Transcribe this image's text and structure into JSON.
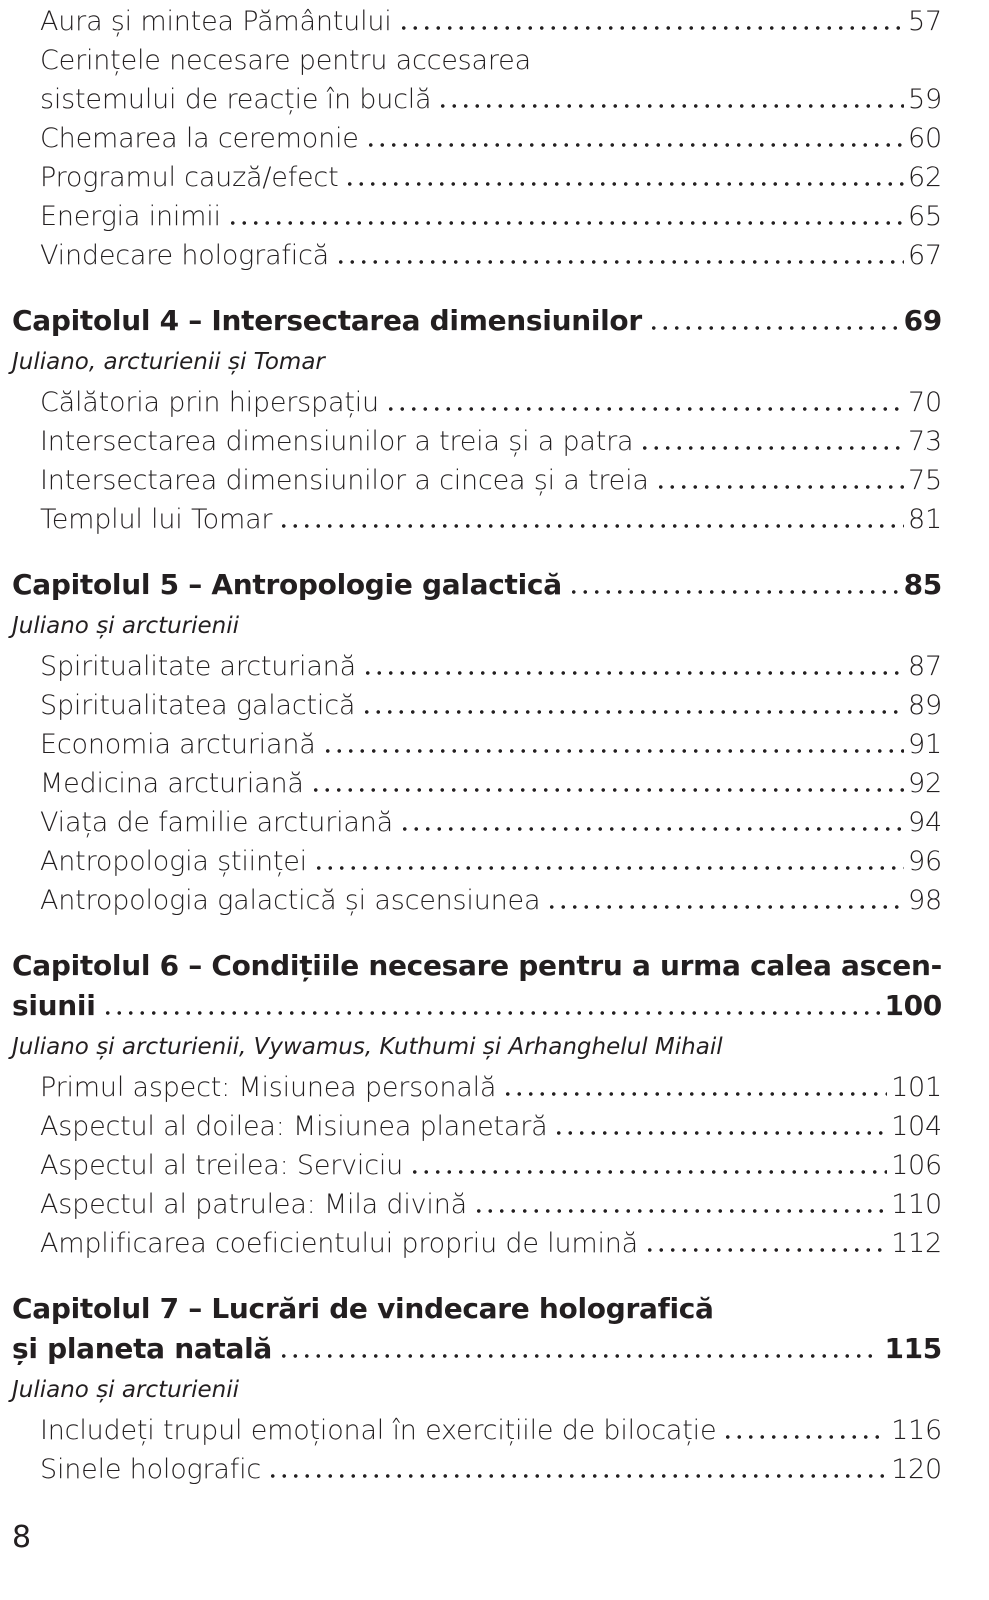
{
  "top_entries": [
    {
      "title": "Aura și mintea Pământului",
      "page": 57
    },
    {
      "lines": [
        "Cerințele necesare pentru accesarea",
        "sistemului de reacție în buclă"
      ],
      "page": 59
    },
    {
      "title": "Chemarea la ceremonie",
      "page": 60
    },
    {
      "title": "Programul cauză/efect",
      "page": 62
    },
    {
      "title": "Energia inimii",
      "page": 65
    },
    {
      "title": "Vindecare holografică",
      "page": 67
    }
  ],
  "chapters": [
    {
      "title": "Capitolul 4 – Intersectarea dimensiunilor",
      "page": 69,
      "subtitle": "Juliano, arcturienii și Tomar",
      "entries": [
        {
          "title": "Călătoria prin hiperspațiu",
          "page": 70
        },
        {
          "title": "Intersectarea dimensiunilor a treia și a patra",
          "page": 73
        },
        {
          "title": "Intersectarea dimensiunilor a cincea și a treia",
          "page": 75
        },
        {
          "title": "Templul lui Tomar",
          "page": 81
        }
      ]
    },
    {
      "title": "Capitolul 5 – Antropologie galactică",
      "page": 85,
      "subtitle": "Juliano și arcturienii",
      "entries": [
        {
          "title": "Spiritualitate arcturiană",
          "page": 87
        },
        {
          "title": "Spiritualitatea galactică",
          "page": 89
        },
        {
          "title": "Economia arcturiană",
          "page": 91
        },
        {
          "title": "Medicina arcturiană",
          "page": 92
        },
        {
          "title": "Viața de familie arcturiană",
          "page": 94
        },
        {
          "title": "Antropologia științei",
          "page": 96
        },
        {
          "title": "Antropologia galactică și ascensiunea",
          "page": 98
        }
      ]
    },
    {
      "lines": [
        "Capitolul 6 – Condițiile necesare pentru a urma calea ascen-",
        "siunii"
      ],
      "page": 100,
      "subtitle": "Juliano și arcturienii, Vywamus, Kuthumi și Arhanghelul Mihail",
      "entries": [
        {
          "title": "Primul aspect: Misiunea personală",
          "page": 101
        },
        {
          "title": "Aspectul al doilea: Misiunea planetară",
          "page": 104
        },
        {
          "title": "Aspectul al treilea: Serviciu",
          "page": 106
        },
        {
          "title": "Aspectul al patrulea: Mila divină",
          "page": 110
        },
        {
          "title": "Amplificarea coeficientului propriu de lumină",
          "page": 112
        }
      ]
    },
    {
      "lines": [
        "Capitolul 7 – Lucrări de vindecare holografică",
        "și planeta natală"
      ],
      "page": 115,
      "subtitle": "Juliano și arcturienii",
      "entries": [
        {
          "title": "Includeți trupul emoțional în exercițiile de bilocație",
          "page": 116
        },
        {
          "title": "Sinele holografic",
          "page": 120
        }
      ]
    }
  ],
  "page_number": "8"
}
